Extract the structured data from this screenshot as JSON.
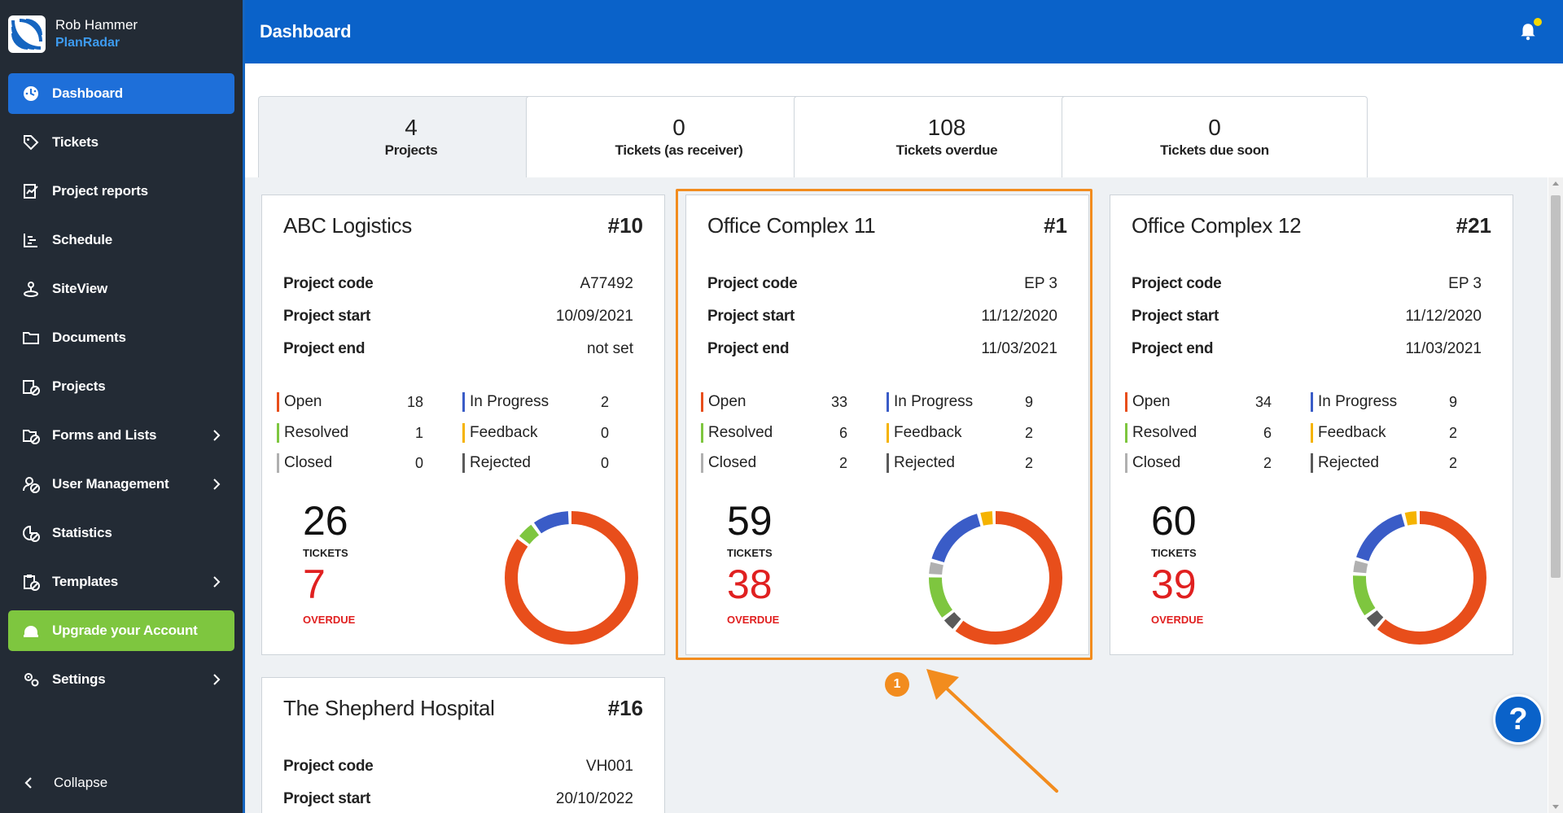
{
  "brand": {
    "user": "Rob Hammer",
    "app": "PlanRadar"
  },
  "nav": [
    {
      "label": "Dashboard",
      "icon": "dashboard-icon",
      "active": true
    },
    {
      "label": "Tickets",
      "icon": "tag-icon"
    },
    {
      "label": "Project reports",
      "icon": "report-icon"
    },
    {
      "label": "Schedule",
      "icon": "schedule-icon"
    },
    {
      "label": "SiteView",
      "icon": "siteview-icon"
    },
    {
      "label": "Documents",
      "icon": "folder-icon"
    },
    {
      "label": "Projects",
      "icon": "projects-icon"
    },
    {
      "label": "Forms and Lists",
      "icon": "forms-icon",
      "chevron": true
    },
    {
      "label": "User Management",
      "icon": "user-icon",
      "chevron": true
    },
    {
      "label": "Statistics",
      "icon": "statistics-icon"
    },
    {
      "label": "Templates",
      "icon": "templates-icon",
      "chevron": true
    },
    {
      "label": "Upgrade your Account",
      "icon": "helmet-icon",
      "upgrade": true
    },
    {
      "label": "Settings",
      "icon": "settings-icon",
      "chevron": true
    }
  ],
  "collapse_label": "Collapse",
  "header": {
    "title": "Dashboard"
  },
  "stats": [
    {
      "value": "4",
      "label": "Projects"
    },
    {
      "value": "0",
      "label": "Tickets (as receiver)"
    },
    {
      "value": "108",
      "label": "Tickets overdue"
    },
    {
      "value": "0",
      "label": "Tickets due soon"
    }
  ],
  "labels": {
    "project_code": "Project code",
    "project_start": "Project start",
    "project_end": "Project end",
    "open": "Open",
    "resolved": "Resolved",
    "closed": "Closed",
    "in_progress": "In Progress",
    "feedback": "Feedback",
    "rejected": "Rejected",
    "tickets": "TICKETS",
    "overdue": "OVERDUE"
  },
  "status_colors": {
    "open": "#e84e1b",
    "resolved": "#7ec63f",
    "closed": "#b0b0b0",
    "in_progress": "#3a5cc7",
    "feedback": "#f5b300",
    "rejected": "#5a5a5a"
  },
  "projects": [
    {
      "name": "ABC Logistics",
      "number": "#10",
      "code": "A77492",
      "start": "10/09/2021",
      "end": "not set",
      "open": "18",
      "resolved": "1",
      "closed": "0",
      "in_progress": "2",
      "feedback": "0",
      "rejected": "0",
      "tickets": "26",
      "overdue": "7"
    },
    {
      "name": "Office Complex 11",
      "number": "#1",
      "code": "EP 3",
      "start": "11/12/2020",
      "end": "11/03/2021",
      "open": "33",
      "resolved": "6",
      "closed": "2",
      "in_progress": "9",
      "feedback": "2",
      "rejected": "2",
      "tickets": "59",
      "overdue": "38"
    },
    {
      "name": "Office Complex 12",
      "number": "#21",
      "code": "EP 3",
      "start": "11/12/2020",
      "end": "11/03/2021",
      "open": "34",
      "resolved": "6",
      "closed": "2",
      "in_progress": "9",
      "feedback": "2",
      "rejected": "2",
      "tickets": "60",
      "overdue": "39"
    },
    {
      "name": "The Shepherd Hospital",
      "number": "#16",
      "code": "VH001",
      "start": "20/10/2022"
    }
  ],
  "annotation": {
    "marker": "1"
  },
  "help_label": "?"
}
